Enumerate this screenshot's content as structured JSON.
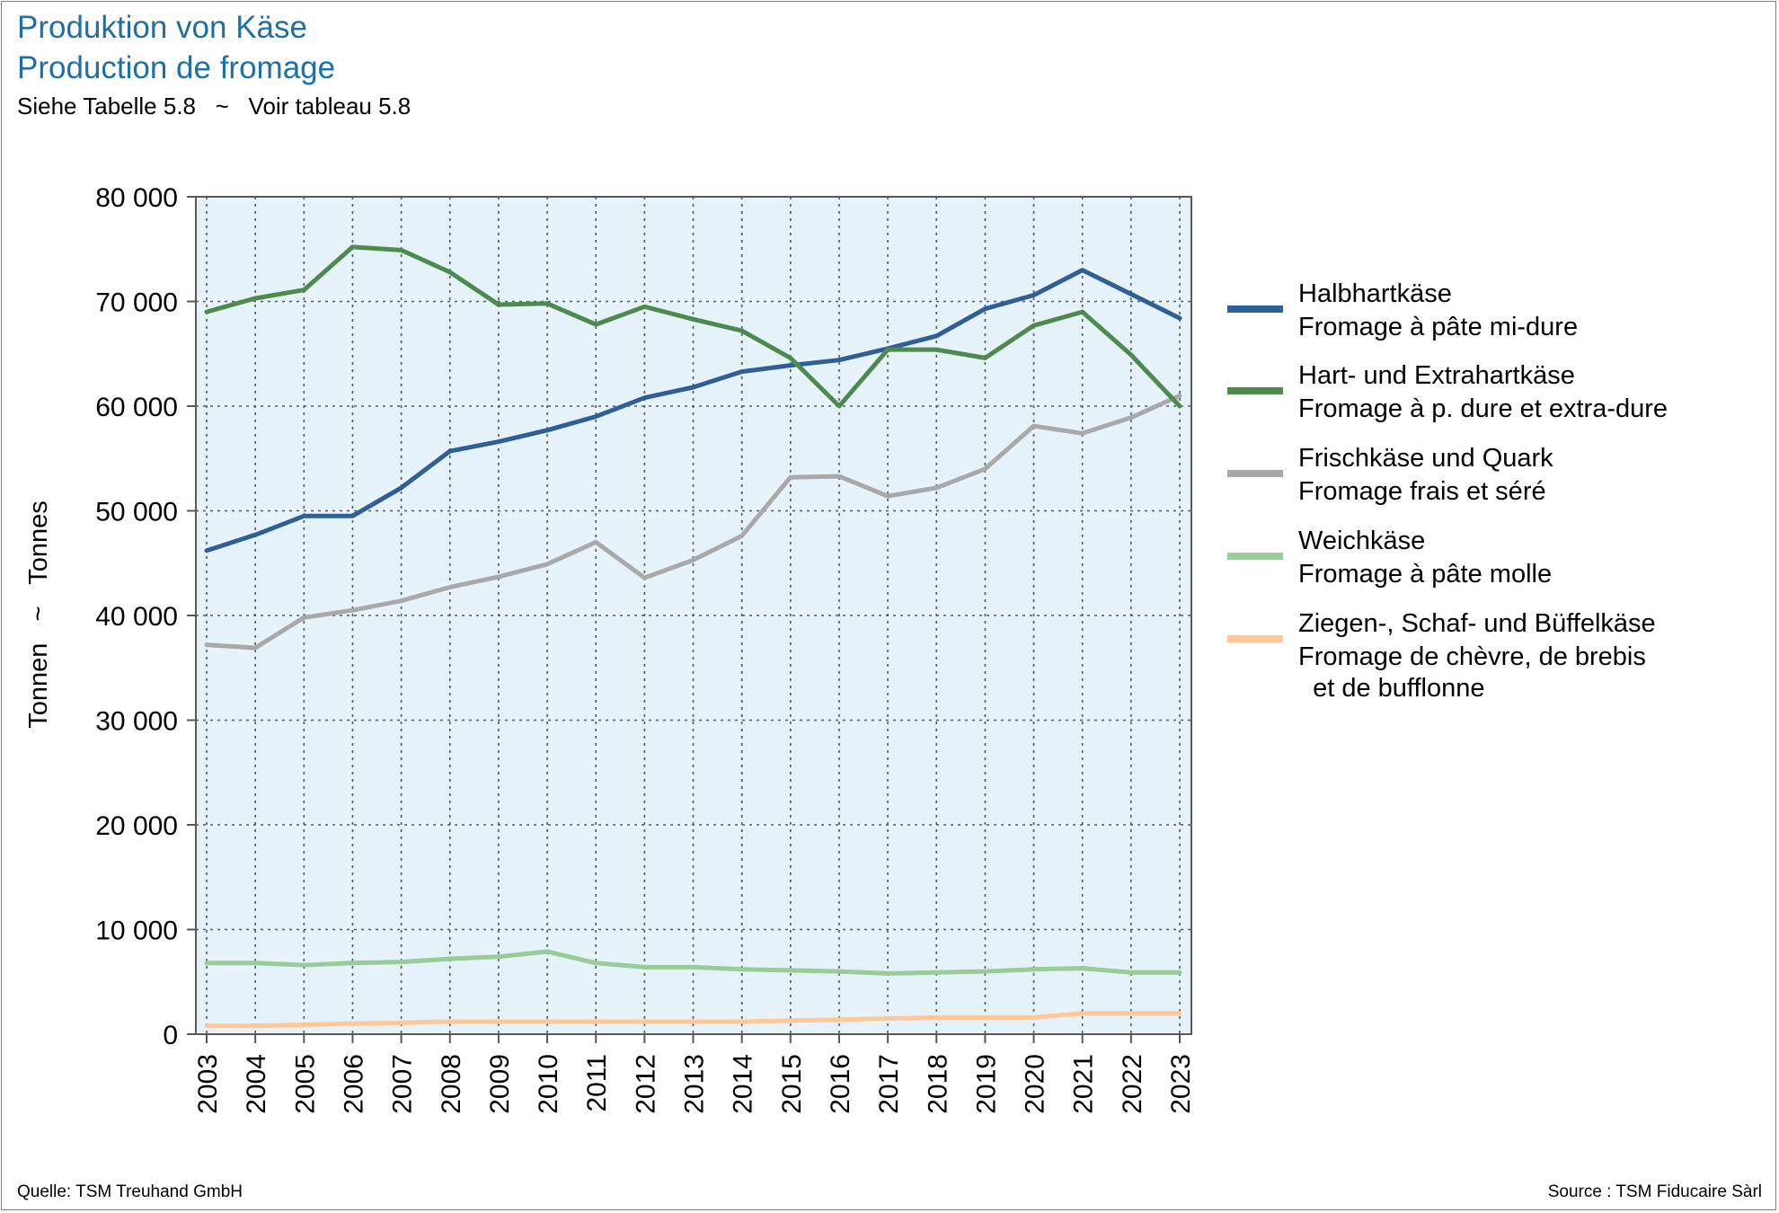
{
  "header": {
    "title_de": "Produktion von Käse",
    "title_fr": "Production de fromage",
    "subtitle": "Siehe Tabelle 5.8   ~   Voir tableau 5.8"
  },
  "footer": {
    "source_de": "Quelle: TSM Treuhand GmbH",
    "source_fr": "Source : TSM Fiducaire Sàrl"
  },
  "chart_data": {
    "type": "line",
    "ylabel": "Tonnen   ~   Tonnes",
    "xlabel": "",
    "ylim": [
      0,
      80000
    ],
    "y_ticks": [
      0,
      10000,
      20000,
      30000,
      40000,
      50000,
      60000,
      70000,
      80000
    ],
    "y_tick_labels": [
      "0",
      "10 000",
      "20 000",
      "30 000",
      "40 000",
      "50 000",
      "60 000",
      "70 000",
      "80 000"
    ],
    "x": [
      "2003",
      "2004",
      "2005",
      "2006",
      "2007",
      "2008",
      "2009",
      "2010",
      "2011",
      "2012",
      "2013",
      "2014",
      "2015",
      "2016",
      "2017",
      "2018",
      "2019",
      "2020",
      "2021",
      "2022",
      "2023"
    ],
    "grid": true,
    "legend_position": "right",
    "series": [
      {
        "name": "Halbhartkäse",
        "name_fr": "Fromage à pâte mi-dure",
        "color": "#2e5f96",
        "values": [
          46200,
          47700,
          49500,
          49500,
          52200,
          55700,
          56600,
          57700,
          59000,
          60800,
          61800,
          63300,
          63900,
          64400,
          65500,
          66700,
          69300,
          70600,
          73000,
          70700,
          68400
        ]
      },
      {
        "name": "Hart- und Extrahartkäse",
        "name_fr": "Fromage à p. dure et extra-dure",
        "color": "#4e8a4e",
        "values": [
          69000,
          70300,
          71100,
          75200,
          74900,
          72800,
          69700,
          69800,
          67800,
          69500,
          68300,
          67200,
          64600,
          60000,
          65400,
          65400,
          64600,
          67700,
          69000,
          64900,
          60000
        ]
      },
      {
        "name": "Frischkäse und Quark",
        "name_fr": "Fromage frais et séré",
        "color": "#a9a9a9",
        "values": [
          37200,
          36900,
          39800,
          40500,
          41400,
          42700,
          43700,
          44900,
          47000,
          43600,
          45300,
          47600,
          53200,
          53300,
          51400,
          52200,
          54000,
          58100,
          57400,
          58900,
          61000
        ]
      },
      {
        "name": "Weichkäse",
        "name_fr": "Fromage à pâte molle",
        "color": "#99cc99",
        "values": [
          6800,
          6800,
          6600,
          6800,
          6900,
          7200,
          7400,
          7900,
          6800,
          6400,
          6400,
          6200,
          6100,
          6000,
          5800,
          5900,
          6000,
          6200,
          6300,
          5900,
          5900
        ]
      },
      {
        "name": "Ziegen-, Schaf- und Büffelkäse",
        "name_fr_lines": [
          "Fromage de chèvre, de brebis",
          "  et de bufflonne"
        ],
        "color": "#ffc896",
        "values": [
          800,
          800,
          900,
          1000,
          1100,
          1200,
          1200,
          1200,
          1200,
          1200,
          1200,
          1200,
          1300,
          1400,
          1500,
          1600,
          1600,
          1600,
          2000,
          2000,
          2000
        ]
      }
    ]
  },
  "colors": {
    "plot_background": "#e6f3fb",
    "title": "#1f6fa3",
    "grid": "#595959"
  }
}
